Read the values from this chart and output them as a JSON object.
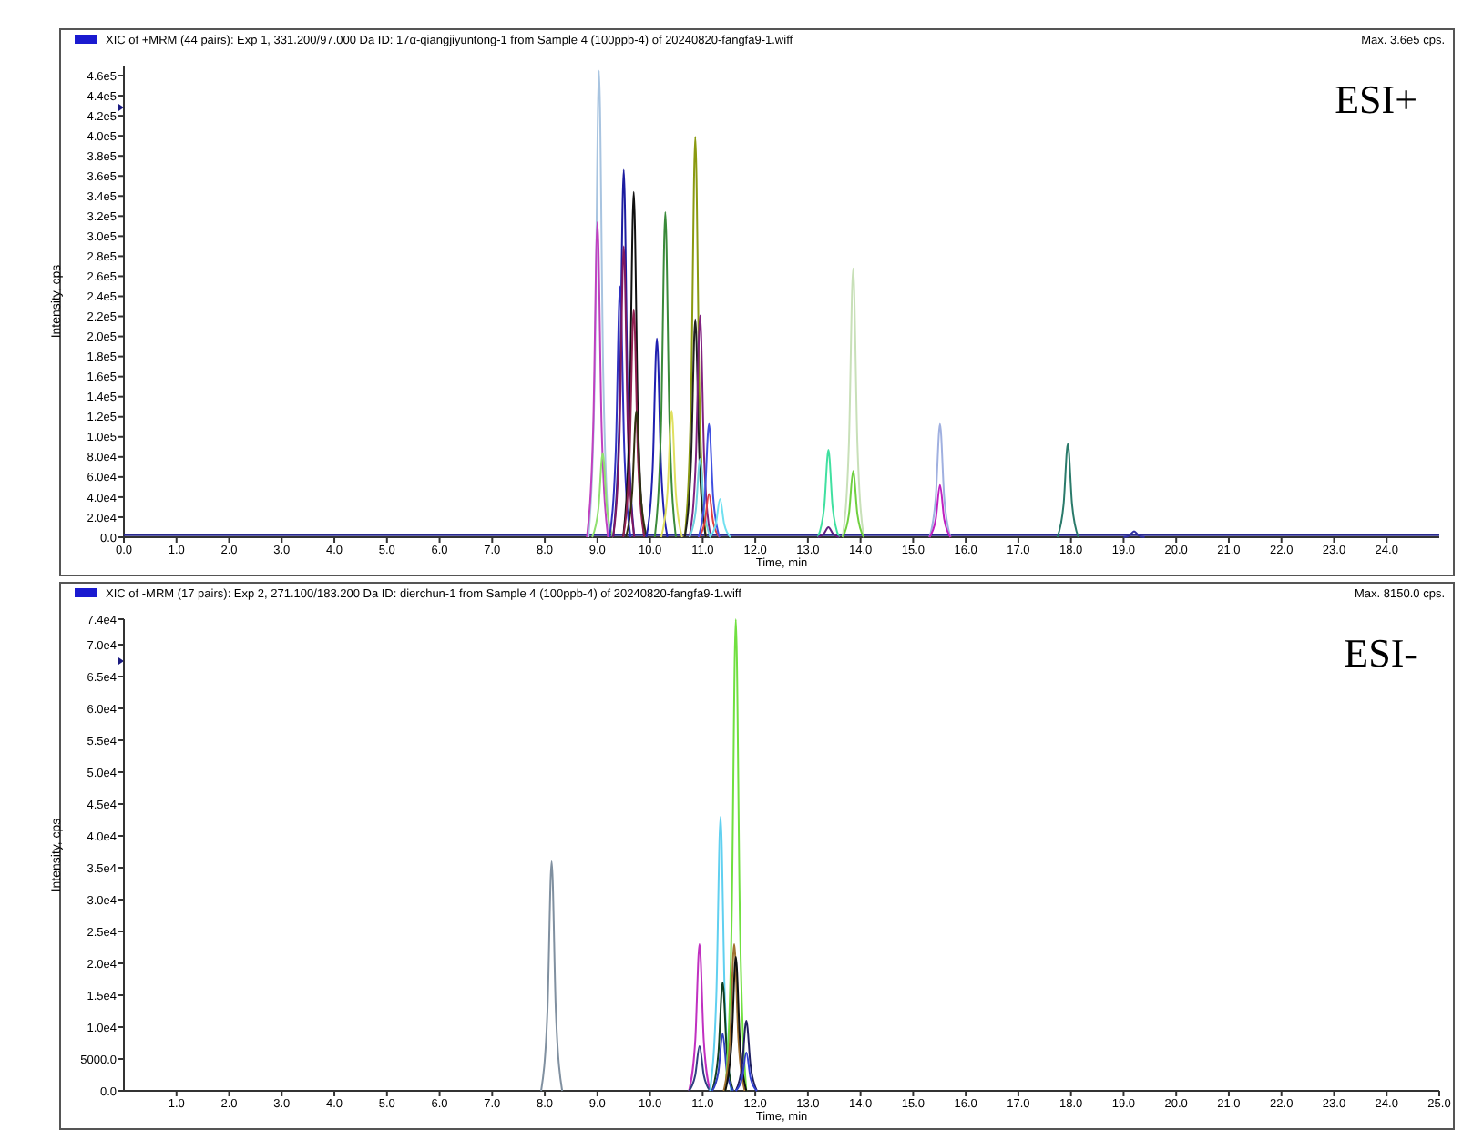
{
  "chart_data": [
    {
      "type": "line",
      "title": "XIC of +MRM (44 pairs): Exp 1, 331.200/97.000 Da ID: 17α-qiangjiyuntong-1 from Sample 4 (100ppb-4) of 20240820-fangfa9-1.wiff",
      "xlabel": "Time, min",
      "ylabel": "Intensity, cps",
      "annotations": [
        "Max. 3.6e5 cps.",
        "ESI+"
      ],
      "xlim": [
        0,
        25
      ],
      "ylim": [
        0,
        470000
      ],
      "xticks": [
        {
          "value": 0,
          "label": "0.0"
        },
        {
          "value": 1,
          "label": "1.0"
        },
        {
          "value": 2,
          "label": "2.0"
        },
        {
          "value": 3,
          "label": "3.0"
        },
        {
          "value": 4,
          "label": "4.0"
        },
        {
          "value": 5,
          "label": "5.0"
        },
        {
          "value": 6,
          "label": "6.0"
        },
        {
          "value": 7,
          "label": "7.0"
        },
        {
          "value": 8,
          "label": "8.0"
        },
        {
          "value": 9,
          "label": "9.0"
        },
        {
          "value": 10,
          "label": "10.0"
        },
        {
          "value": 11,
          "label": "11.0"
        },
        {
          "value": 12,
          "label": "12.0"
        },
        {
          "value": 13,
          "label": "13.0"
        },
        {
          "value": 14,
          "label": "14.0"
        },
        {
          "value": 15,
          "label": "15.0"
        },
        {
          "value": 16,
          "label": "16.0"
        },
        {
          "value": 17,
          "label": "17.0"
        },
        {
          "value": 18,
          "label": "18.0"
        },
        {
          "value": 19,
          "label": "19.0"
        },
        {
          "value": 20,
          "label": "20.0"
        },
        {
          "value": 21,
          "label": "21.0"
        },
        {
          "value": 22,
          "label": "22.0"
        },
        {
          "value": 23,
          "label": "23.0"
        },
        {
          "value": 24,
          "label": "24.0"
        }
      ],
      "yticks": [
        {
          "value": 0,
          "label": "0.0"
        },
        {
          "value": 20000,
          "label": "2.0e4"
        },
        {
          "value": 40000,
          "label": "4.0e4"
        },
        {
          "value": 60000,
          "label": "6.0e4"
        },
        {
          "value": 80000,
          "label": "8.0e4"
        },
        {
          "value": 100000,
          "label": "1.0e5"
        },
        {
          "value": 120000,
          "label": "1.2e5"
        },
        {
          "value": 140000,
          "label": "1.4e5"
        },
        {
          "value": 160000,
          "label": "1.6e5"
        },
        {
          "value": 180000,
          "label": "1.8e5"
        },
        {
          "value": 200000,
          "label": "2.0e5"
        },
        {
          "value": 220000,
          "label": "2.2e5"
        },
        {
          "value": 240000,
          "label": "2.4e5"
        },
        {
          "value": 260000,
          "label": "2.6e5"
        },
        {
          "value": 280000,
          "label": "2.8e5"
        },
        {
          "value": 300000,
          "label": "3.0e5"
        },
        {
          "value": 320000,
          "label": "3.2e5"
        },
        {
          "value": 340000,
          "label": "3.4e5"
        },
        {
          "value": 360000,
          "label": "3.6e5"
        },
        {
          "value": 380000,
          "label": "3.8e5"
        },
        {
          "value": 400000,
          "label": "4.0e5"
        },
        {
          "value": 420000,
          "label": "4.2e5"
        },
        {
          "value": 440000,
          "label": "4.4e5"
        },
        {
          "value": 460000,
          "label": "4.6e5"
        }
      ],
      "series": [
        {
          "color": "#2a2a90",
          "x": [
            0,
            25
          ],
          "values": [
            2000,
            2000
          ]
        },
        {
          "color": "#a8c4e0",
          "x": [
            8.83,
            8.95,
            9.03,
            9.11,
            9.23
          ],
          "values": [
            0,
            163000,
            465000,
            163000,
            0
          ]
        },
        {
          "color": "#c040c0",
          "x": [
            8.8,
            8.92,
            9.0,
            9.08,
            9.2
          ],
          "values": [
            0,
            110000,
            314000,
            110000,
            0
          ]
        },
        {
          "color": "#90e070",
          "x": [
            8.9,
            9.02,
            9.1,
            9.18,
            9.3
          ],
          "values": [
            0,
            29000,
            84000,
            29000,
            0
          ]
        },
        {
          "color": "#1c1ca0",
          "x": [
            9.3,
            9.42,
            9.5,
            9.58,
            9.7
          ],
          "values": [
            0,
            128000,
            366000,
            128000,
            0
          ]
        },
        {
          "color": "#3030c0",
          "x": [
            9.23,
            9.35,
            9.43,
            9.51,
            9.63
          ],
          "values": [
            0,
            88000,
            250000,
            88000,
            0
          ]
        },
        {
          "color": "#801860",
          "x": [
            9.3,
            9.42,
            9.5,
            9.58,
            9.7
          ],
          "values": [
            0,
            102000,
            290000,
            102000,
            0
          ]
        },
        {
          "color": "#101010",
          "x": [
            9.49,
            9.61,
            9.69,
            9.77,
            9.89
          ],
          "values": [
            0,
            120000,
            344000,
            120000,
            0
          ]
        },
        {
          "color": "#902050",
          "x": [
            9.49,
            9.61,
            9.69,
            9.77,
            9.89
          ],
          "values": [
            0,
            79000,
            227000,
            79000,
            0
          ]
        },
        {
          "color": "#303010",
          "x": [
            9.54,
            9.66,
            9.74,
            9.82,
            9.94
          ],
          "values": [
            0,
            44000,
            126000,
            44000,
            0
          ]
        },
        {
          "color": "#2020b0",
          "x": [
            9.93,
            10.05,
            10.13,
            10.21,
            10.33
          ],
          "values": [
            0,
            69000,
            198000,
            69000,
            0
          ]
        },
        {
          "color": "#3a8a3a",
          "x": [
            10.09,
            10.21,
            10.29,
            10.37,
            10.49
          ],
          "values": [
            0,
            113000,
            324000,
            113000,
            0
          ]
        },
        {
          "color": "#e0e060",
          "x": [
            10.21,
            10.33,
            10.41,
            10.49,
            10.61
          ],
          "values": [
            0,
            44000,
            126000,
            44000,
            0
          ]
        },
        {
          "color": "#8a9a10",
          "x": [
            10.66,
            10.78,
            10.86,
            10.94,
            11.06
          ],
          "values": [
            0,
            140000,
            399000,
            140000,
            0
          ]
        },
        {
          "color": "#202020",
          "x": [
            10.66,
            10.78,
            10.86,
            10.94,
            11.06
          ],
          "values": [
            0,
            76000,
            217000,
            76000,
            0
          ]
        },
        {
          "color": "#802080",
          "x": [
            10.75,
            10.87,
            10.95,
            11.03,
            11.15
          ],
          "values": [
            0,
            77000,
            221000,
            77000,
            0
          ]
        },
        {
          "color": "#70d0e0",
          "x": [
            10.75,
            10.87,
            10.95,
            11.03,
            11.15
          ],
          "values": [
            0,
            27000,
            78000,
            27000,
            0
          ]
        },
        {
          "color": "#e04040",
          "x": [
            10.92,
            11.04,
            11.12,
            11.2,
            11.32
          ],
          "values": [
            0,
            15000,
            43000,
            15000,
            0
          ]
        },
        {
          "color": "#4050e0",
          "x": [
            10.92,
            11.04,
            11.12,
            11.2,
            11.32
          ],
          "values": [
            0,
            40000,
            113000,
            40000,
            0
          ]
        },
        {
          "color": "#70e0f0",
          "x": [
            11.13,
            11.25,
            11.33,
            11.41,
            11.53
          ],
          "values": [
            0,
            13000,
            38000,
            13000,
            0
          ]
        },
        {
          "color": "#40e0a0",
          "x": [
            13.19,
            13.31,
            13.39,
            13.47,
            13.59
          ],
          "values": [
            0,
            30000,
            87000,
            30000,
            0
          ]
        },
        {
          "color": "#602080",
          "x": [
            13.19,
            13.31,
            13.39,
            13.47,
            13.59
          ],
          "values": [
            0,
            4000,
            10000,
            4000,
            0
          ]
        },
        {
          "color": "#c8e0b8",
          "x": [
            13.66,
            13.78,
            13.86,
            13.94,
            14.06
          ],
          "values": [
            0,
            94000,
            268000,
            94000,
            0
          ]
        },
        {
          "color": "#70d040",
          "x": [
            13.66,
            13.78,
            13.86,
            13.94,
            14.06
          ],
          "values": [
            0,
            23000,
            66000,
            23000,
            0
          ]
        },
        {
          "color": "#a0b0e0",
          "x": [
            15.31,
            15.43,
            15.51,
            15.59,
            15.71
          ],
          "values": [
            0,
            40000,
            113000,
            40000,
            0
          ]
        },
        {
          "color": "#c020c0",
          "x": [
            15.31,
            15.43,
            15.51,
            15.59,
            15.71
          ],
          "values": [
            0,
            18000,
            52000,
            18000,
            0
          ]
        },
        {
          "color": "#2a7a6a",
          "x": [
            17.74,
            17.86,
            17.94,
            18.02,
            18.14
          ],
          "values": [
            0,
            33000,
            93000,
            33000,
            0
          ]
        },
        {
          "color": "#3030a0",
          "x": [
            19.0,
            19.12,
            19.2,
            19.28,
            19.4
          ],
          "values": [
            0,
            2000,
            6000,
            2000,
            0
          ]
        }
      ]
    },
    {
      "type": "line",
      "title": "XIC of -MRM (17 pairs): Exp 2, 271.100/183.200 Da ID: dierchun-1 from Sample 4 (100ppb-4) of 20240820-fangfa9-1.wiff",
      "xlabel": "Time, min",
      "ylabel": "Intensity, cps",
      "annotations": [
        "Max. 8150.0 cps.",
        "ESI-"
      ],
      "xlim": [
        0,
        25
      ],
      "ylim": [
        0,
        74000
      ],
      "xticks": [
        {
          "value": 1,
          "label": "1.0"
        },
        {
          "value": 2,
          "label": "2.0"
        },
        {
          "value": 3,
          "label": "3.0"
        },
        {
          "value": 4,
          "label": "4.0"
        },
        {
          "value": 5,
          "label": "5.0"
        },
        {
          "value": 6,
          "label": "6.0"
        },
        {
          "value": 7,
          "label": "7.0"
        },
        {
          "value": 8,
          "label": "8.0"
        },
        {
          "value": 9,
          "label": "9.0"
        },
        {
          "value": 10,
          "label": "10.0"
        },
        {
          "value": 11,
          "label": "11.0"
        },
        {
          "value": 12,
          "label": "12.0"
        },
        {
          "value": 13,
          "label": "13.0"
        },
        {
          "value": 14,
          "label": "14.0"
        },
        {
          "value": 15,
          "label": "15.0"
        },
        {
          "value": 16,
          "label": "16.0"
        },
        {
          "value": 17,
          "label": "17.0"
        },
        {
          "value": 18,
          "label": "18.0"
        },
        {
          "value": 19,
          "label": "19.0"
        },
        {
          "value": 20,
          "label": "20.0"
        },
        {
          "value": 21,
          "label": "21.0"
        },
        {
          "value": 22,
          "label": "22.0"
        },
        {
          "value": 23,
          "label": "23.0"
        },
        {
          "value": 24,
          "label": "24.0"
        },
        {
          "value": 25,
          "label": "25.0"
        }
      ],
      "yticks": [
        {
          "value": 0,
          "label": "0.0"
        },
        {
          "value": 5000,
          "label": "5000.0"
        },
        {
          "value": 10000,
          "label": "1.0e4"
        },
        {
          "value": 15000,
          "label": "1.5e4"
        },
        {
          "value": 20000,
          "label": "2.0e4"
        },
        {
          "value": 25000,
          "label": "2.5e4"
        },
        {
          "value": 30000,
          "label": "3.0e4"
        },
        {
          "value": 35000,
          "label": "3.5e4"
        },
        {
          "value": 40000,
          "label": "4.0e4"
        },
        {
          "value": 45000,
          "label": "4.5e4"
        },
        {
          "value": 50000,
          "label": "5.0e4"
        },
        {
          "value": 55000,
          "label": "5.5e4"
        },
        {
          "value": 60000,
          "label": "6.0e4"
        },
        {
          "value": 65000,
          "label": "6.5e4"
        },
        {
          "value": 70000,
          "label": "7.0e4"
        },
        {
          "value": 74000,
          "label": "7.4e4"
        }
      ],
      "series": [
        {
          "color": "#8090a0",
          "x": [
            7.93,
            8.05,
            8.13,
            8.21,
            8.33
          ],
          "values": [
            0,
            12500,
            36000,
            12500,
            0
          ]
        },
        {
          "color": "#c030c0",
          "x": [
            10.74,
            10.86,
            10.94,
            11.02,
            11.14
          ],
          "values": [
            0,
            8000,
            23000,
            8000,
            0
          ]
        },
        {
          "color": "#304080",
          "x": [
            10.74,
            10.86,
            10.94,
            11.02,
            11.14
          ],
          "values": [
            0,
            2500,
            7000,
            2500,
            0
          ]
        },
        {
          "color": "#60d0f0",
          "x": [
            11.14,
            11.26,
            11.34,
            11.42,
            11.54
          ],
          "values": [
            0,
            15000,
            43000,
            15000,
            0
          ]
        },
        {
          "color": "#104020",
          "x": [
            11.18,
            11.3,
            11.38,
            11.46,
            11.58
          ],
          "values": [
            0,
            6000,
            17000,
            6000,
            0
          ]
        },
        {
          "color": "#3040c0",
          "x": [
            11.18,
            11.3,
            11.38,
            11.46,
            11.58
          ],
          "values": [
            0,
            3000,
            9000,
            3000,
            0
          ]
        },
        {
          "color": "#70e040",
          "x": [
            11.43,
            11.55,
            11.63,
            11.71,
            11.83
          ],
          "values": [
            0,
            26000,
            74000,
            26000,
            0
          ]
        },
        {
          "color": "#a07030",
          "x": [
            11.4,
            11.52,
            11.6,
            11.68,
            11.8
          ],
          "values": [
            0,
            8000,
            23000,
            8000,
            0
          ]
        },
        {
          "color": "#101010",
          "x": [
            11.43,
            11.55,
            11.63,
            11.71,
            11.83
          ],
          "values": [
            0,
            7500,
            21000,
            7500,
            0
          ]
        },
        {
          "color": "#202060",
          "x": [
            11.63,
            11.75,
            11.83,
            11.91,
            12.03
          ],
          "values": [
            0,
            4000,
            11000,
            4000,
            0
          ]
        },
        {
          "color": "#3040d0",
          "x": [
            11.63,
            11.75,
            11.83,
            11.91,
            12.03
          ],
          "values": [
            0,
            2000,
            6000,
            2000,
            0
          ]
        }
      ]
    }
  ]
}
